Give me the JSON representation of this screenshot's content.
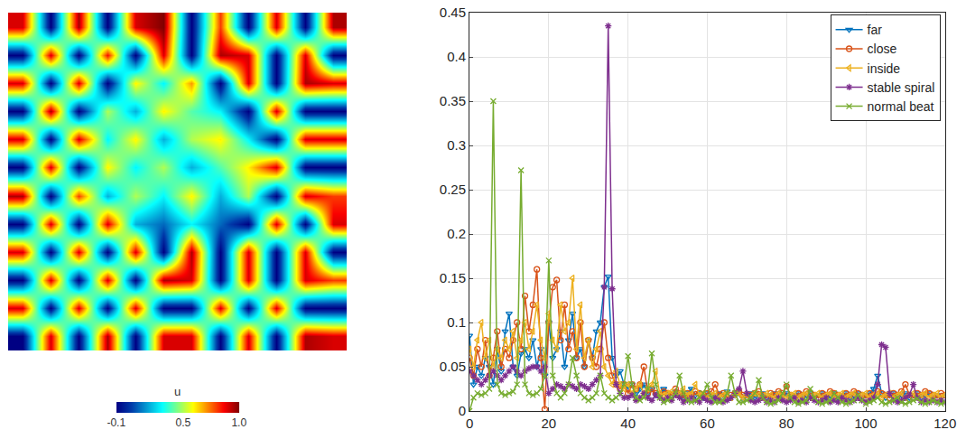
{
  "chart_data": [
    {
      "type": "heatmap",
      "tick_labels": false,
      "cells": [
        [
          0.9,
          -0.1,
          0.95,
          -0.1,
          0.9,
          1.0,
          -0.1,
          0.8,
          -0.1,
          0.9,
          -0.1,
          0.95
        ],
        [
          -0.1,
          0.9,
          -0.1,
          0.85,
          -0.1,
          0.9,
          -0.1,
          0.95,
          0.9,
          -0.1,
          0.9,
          -0.1
        ],
        [
          0.9,
          -0.1,
          0.9,
          -0.1,
          0.6,
          0.3,
          0.7,
          -0.1,
          0.9,
          -0.1,
          0.95,
          0.9
        ],
        [
          -0.1,
          0.95,
          -0.1,
          0.5,
          0.2,
          0.6,
          0.4,
          0.3,
          -0.1,
          0.9,
          -0.1,
          -0.1
        ],
        [
          0.9,
          -0.1,
          0.9,
          0.3,
          0.6,
          0.2,
          0.5,
          0.6,
          0.3,
          -0.1,
          0.9,
          0.9
        ],
        [
          -0.1,
          0.9,
          -0.1,
          0.6,
          0.3,
          0.5,
          0.2,
          0.4,
          0.6,
          0.9,
          -0.1,
          -0.1
        ],
        [
          0.95,
          -0.1,
          0.8,
          0.2,
          0.5,
          0.3,
          0.6,
          0.2,
          0.5,
          -0.1,
          0.9,
          0.8
        ],
        [
          -0.1,
          0.9,
          -0.1,
          0.9,
          0.2,
          0.1,
          0.3,
          0.1,
          -0.1,
          0.9,
          -0.1,
          0.9
        ],
        [
          0.9,
          -0.1,
          0.9,
          -0.1,
          0.9,
          -0.1,
          0.95,
          -0.1,
          0.9,
          -0.1,
          0.9,
          -0.1
        ],
        [
          -0.1,
          0.9,
          -0.1,
          0.9,
          -0.1,
          0.95,
          0.9,
          -0.1,
          0.9,
          -0.1,
          0.9,
          0.8
        ],
        [
          0.9,
          -0.1,
          0.9,
          -0.1,
          0.9,
          -0.1,
          -0.1,
          0.9,
          -0.1,
          0.9,
          -0.1,
          -0.1
        ],
        [
          -0.1,
          0.9,
          -0.1,
          0.95,
          -0.1,
          0.9,
          0.9,
          -0.1,
          0.9,
          -0.1,
          0.95,
          0.9
        ]
      ],
      "colorbar": {
        "title": "u",
        "range": [
          -0.1,
          1
        ],
        "ticks": [
          -0.1,
          0.5,
          {
            "value": 1,
            "label": "1.0"
          }
        ]
      }
    },
    {
      "type": "line",
      "grid": true,
      "legend": "upper right",
      "xlim": [
        0,
        120
      ],
      "xticks": [
        0,
        20,
        40,
        60,
        80,
        100,
        120
      ],
      "ylim": [
        0,
        0.45
      ],
      "yticks": [
        0,
        0.05,
        0.1,
        0.15,
        0.2,
        0.25,
        0.3,
        0.35,
        0.4,
        0.45
      ],
      "x": [
        0,
        1,
        2,
        3,
        4,
        5,
        6,
        7,
        8,
        9,
        10,
        11,
        12,
        13,
        14,
        15,
        16,
        17,
        18,
        19,
        20,
        21,
        22,
        23,
        24,
        25,
        26,
        27,
        28,
        29,
        30,
        31,
        32,
        33,
        34,
        35,
        36,
        37,
        38,
        39,
        40,
        41,
        42,
        43,
        44,
        45,
        46,
        47,
        48,
        49,
        50,
        51,
        52,
        53,
        54,
        55,
        56,
        57,
        58,
        59,
        60,
        61,
        62,
        63,
        64,
        65,
        66,
        67,
        68,
        69,
        70,
        71,
        72,
        73,
        74,
        75,
        76,
        77,
        78,
        79,
        80,
        81,
        82,
        83,
        84,
        85,
        86,
        87,
        88,
        89,
        90,
        91,
        92,
        93,
        94,
        95,
        96,
        97,
        98,
        99,
        100,
        101,
        102,
        103,
        104,
        105,
        106,
        107,
        108,
        109,
        110,
        111,
        112,
        113,
        114,
        115,
        116,
        117,
        118,
        119,
        120
      ],
      "series": [
        {
          "name": "far",
          "color": "#0072bd",
          "marker": "triangle-down",
          "values": [
            0.085,
            0.03,
            0.05,
            0.04,
            0.06,
            0.05,
            0.03,
            0.07,
            0.045,
            0.09,
            0.11,
            0.05,
            0.04,
            0.065,
            0.07,
            0.06,
            0.08,
            0.05,
            0.07,
            0.04,
            0.1,
            0.06,
            0.07,
            0.09,
            0.05,
            0.08,
            0.11,
            0.06,
            0.07,
            0.05,
            0.08,
            0.06,
            0.09,
            0.1,
            0.14,
            0.152,
            0.06,
            0.04,
            0.045,
            0.03,
            0.025,
            0.03,
            0.02,
            0.025,
            0.03,
            0.02,
            0.025,
            0.018,
            0.02,
            0.025,
            0.02,
            0.018,
            0.022,
            0.02,
            0.015,
            0.02,
            0.025,
            0.018,
            0.02,
            0.015,
            0.02,
            0.018,
            0.015,
            0.02,
            0.018,
            0.022,
            0.015,
            0.018,
            0.02,
            0.015,
            0.018,
            0.02,
            0.015,
            0.018,
            0.02,
            0.015,
            0.018,
            0.02,
            0.015,
            0.018,
            0.02,
            0.015,
            0.018,
            0.02,
            0.015,
            0.018,
            0.02,
            0.015,
            0.018,
            0.02,
            0.015,
            0.018,
            0.02,
            0.015,
            0.018,
            0.02,
            0.015,
            0.018,
            0.02,
            0.015,
            0.018,
            0.02,
            0.025,
            0.04,
            0.02,
            0.015,
            0.018,
            0.02,
            0.015,
            0.018,
            0.02,
            0.015,
            0.018,
            0.02,
            0.015,
            0.018,
            0.02,
            0.015,
            0.018,
            0.015,
            0.018
          ]
        },
        {
          "name": "close",
          "color": "#d95319",
          "marker": "circle",
          "values": [
            0.06,
            0.04,
            0.07,
            0.05,
            0.08,
            0.04,
            0.06,
            0.09,
            0.05,
            0.07,
            0.06,
            0.08,
            0.1,
            0.07,
            0.13,
            0.09,
            0.12,
            0.16,
            0.06,
            0.002,
            0.1,
            0.14,
            0.148,
            0.08,
            0.12,
            0.07,
            0.09,
            0.06,
            0.1,
            0.05,
            0.08,
            0.06,
            0.05,
            0.07,
            0.1,
            0.06,
            0.04,
            0.03,
            0.025,
            0.03,
            0.02,
            0.03,
            0.025,
            0.03,
            0.05,
            0.02,
            0.025,
            0.02,
            0.018,
            0.022,
            0.02,
            0.018,
            0.025,
            0.02,
            0.015,
            0.02,
            0.018,
            0.022,
            0.02,
            0.018,
            0.02,
            0.022,
            0.03,
            0.018,
            0.02,
            0.015,
            0.018,
            0.02,
            0.022,
            0.018,
            0.015,
            0.018,
            0.02,
            0.022,
            0.018,
            0.015,
            0.02,
            0.018,
            0.022,
            0.02,
            0.028,
            0.018,
            0.015,
            0.02,
            0.018,
            0.022,
            0.02,
            0.018,
            0.015,
            0.02,
            0.018,
            0.022,
            0.02,
            0.018,
            0.015,
            0.02,
            0.018,
            0.022,
            0.02,
            0.018,
            0.015,
            0.02,
            0.018,
            0.022,
            0.02,
            0.018,
            0.015,
            0.02,
            0.018,
            0.022,
            0.03,
            0.018,
            0.015,
            0.02,
            0.018,
            0.022,
            0.02,
            0.018,
            0.015,
            0.02,
            0.018
          ]
        },
        {
          "name": "inside",
          "color": "#edb120",
          "marker": "triangle-left",
          "values": [
            0.07,
            0.05,
            0.08,
            0.1,
            0.06,
            0.08,
            0.05,
            0.07,
            0.06,
            0.08,
            0.07,
            0.09,
            0.06,
            0.08,
            0.1,
            0.07,
            0.09,
            0.12,
            0.08,
            0.06,
            0.11,
            0.08,
            0.07,
            0.12,
            0.09,
            0.1,
            0.15,
            0.07,
            0.12,
            0.06,
            0.08,
            0.05,
            0.07,
            0.09,
            0.05,
            0.04,
            0.03,
            0.045,
            0.03,
            0.025,
            0.03,
            0.02,
            0.025,
            0.03,
            0.02,
            0.025,
            0.03,
            0.045,
            0.02,
            0.018,
            0.02,
            0.022,
            0.018,
            0.02,
            0.025,
            0.018,
            0.02,
            0.03,
            0.018,
            0.02,
            0.015,
            0.018,
            0.02,
            0.015,
            0.018,
            0.02,
            0.015,
            0.018,
            0.02,
            0.015,
            0.018,
            0.015,
            0.02,
            0.018,
            0.015,
            0.02,
            0.018,
            0.015,
            0.02,
            0.018,
            0.015,
            0.018,
            0.02,
            0.015,
            0.018,
            0.02,
            0.015,
            0.018,
            0.02,
            0.015,
            0.018,
            0.02,
            0.015,
            0.018,
            0.02,
            0.015,
            0.018,
            0.02,
            0.015,
            0.018,
            0.02,
            0.015,
            0.018,
            0.02,
            0.015,
            0.018,
            0.02,
            0.015,
            0.018,
            0.02,
            0.015,
            0.018,
            0.02,
            0.015,
            0.018,
            0.02,
            0.015,
            0.018,
            0.02,
            0.015,
            0.018
          ]
        },
        {
          "name": "stable spiral",
          "color": "#7e2f8e",
          "marker": "asterisk",
          "values": [
            0.045,
            0.04,
            0.035,
            0.03,
            0.035,
            0.04,
            0.045,
            0.04,
            0.035,
            0.04,
            0.045,
            0.05,
            0.045,
            0.04,
            0.045,
            0.048,
            0.05,
            0.05,
            0.045,
            0.05,
            0.02,
            0.025,
            0.03,
            0.028,
            0.025,
            0.03,
            0.028,
            0.025,
            0.03,
            0.028,
            0.025,
            0.03,
            0.035,
            0.04,
            0.14,
            0.435,
            0.138,
            0.03,
            0.02,
            0.015,
            0.015,
            0.018,
            0.012,
            0.015,
            0.02,
            0.015,
            0.012,
            0.018,
            0.015,
            0.012,
            0.015,
            0.012,
            0.018,
            0.015,
            0.01,
            0.012,
            0.015,
            0.012,
            0.01,
            0.015,
            0.012,
            0.01,
            0.015,
            0.012,
            0.01,
            0.012,
            0.015,
            0.02,
            0.025,
            0.045,
            0.02,
            0.012,
            0.01,
            0.012,
            0.015,
            0.01,
            0.012,
            0.01,
            0.015,
            0.012,
            0.01,
            0.012,
            0.015,
            0.01,
            0.012,
            0.01,
            0.015,
            0.012,
            0.01,
            0.012,
            0.015,
            0.01,
            0.012,
            0.01,
            0.015,
            0.012,
            0.01,
            0.012,
            0.015,
            0.012,
            0.01,
            0.012,
            0.015,
            0.03,
            0.075,
            0.072,
            0.02,
            0.012,
            0.01,
            0.012,
            0.015,
            0.018,
            0.03,
            0.015,
            0.01,
            0.012,
            0.01,
            0.012,
            0.01,
            0.012,
            0.01
          ]
        },
        {
          "name": "normal beat",
          "color": "#77ac30",
          "marker": "x",
          "values": [
            0,
            0.015,
            0.02,
            0.018,
            0.02,
            0.025,
            0.35,
            0.03,
            0.02,
            0.018,
            0.02,
            0.022,
            0.03,
            0.272,
            0.03,
            0.02,
            0.018,
            0.02,
            0.025,
            0.04,
            0.17,
            0.04,
            0.02,
            0.015,
            0.02,
            0.03,
            0.06,
            0.04,
            0.02,
            0.015,
            0.012,
            0.015,
            0.02,
            0.04,
            0.02,
            0.015,
            0.012,
            0.015,
            0.02,
            0.03,
            0.062,
            0.03,
            0.015,
            0.012,
            0.015,
            0.025,
            0.065,
            0.03,
            0.015,
            0.01,
            0.012,
            0.015,
            0.02,
            0.04,
            0.02,
            0.012,
            0.01,
            0.012,
            0.015,
            0.02,
            0.03,
            0.015,
            0.01,
            0.01,
            0.012,
            0.02,
            0.04,
            0.02,
            0.01,
            0.01,
            0.012,
            0.015,
            0.02,
            0.035,
            0.015,
            0.01,
            0.008,
            0.01,
            0.012,
            0.02,
            0.03,
            0.015,
            0.01,
            0.008,
            0.01,
            0.012,
            0.025,
            0.015,
            0.01,
            0.008,
            0.01,
            0.012,
            0.02,
            0.015,
            0.01,
            0.008,
            0.01,
            0.012,
            0.018,
            0.012,
            0.008,
            0.01,
            0.012,
            0.015,
            0.01,
            0.008,
            0.01,
            0.012,
            0.015,
            0.01,
            0.008,
            0.01,
            0.012,
            0.014,
            0.01,
            0.008,
            0.01,
            0.012,
            0.01,
            0.008,
            0.01
          ]
        }
      ]
    }
  ]
}
